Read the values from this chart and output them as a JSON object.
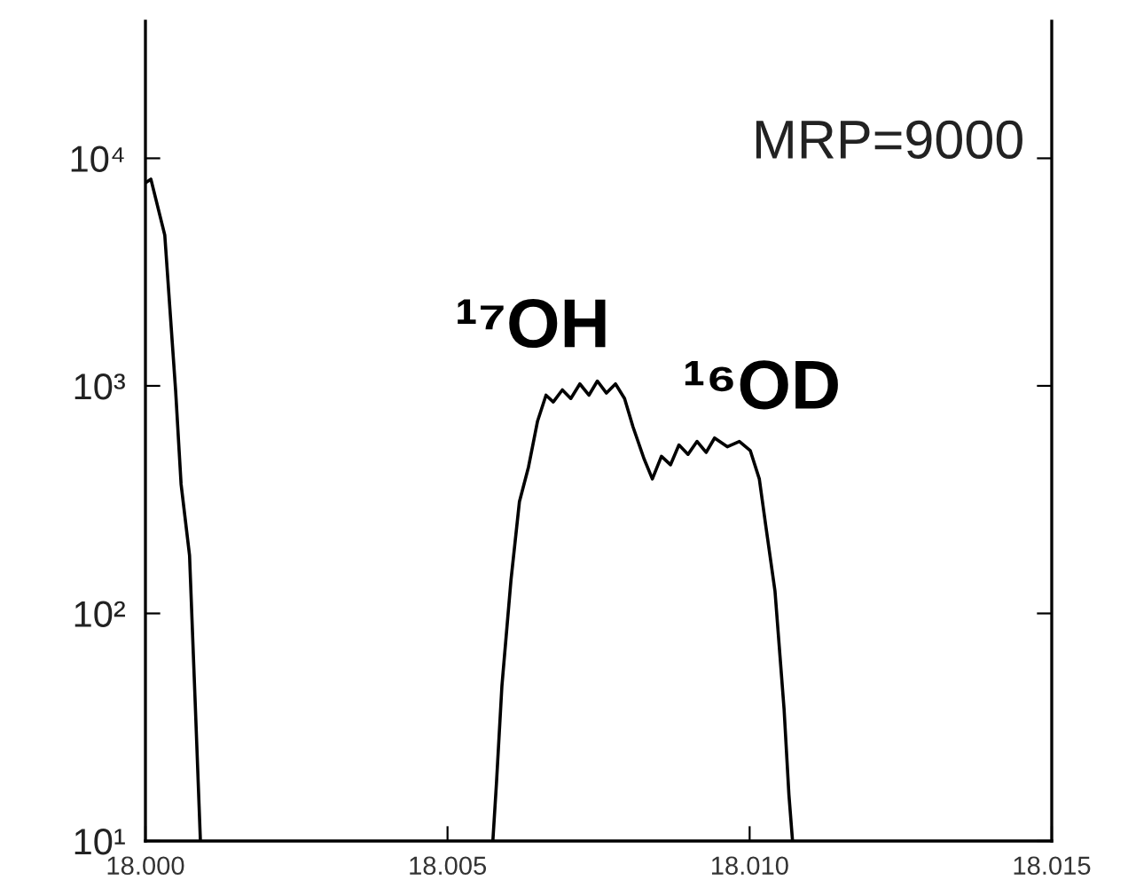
{
  "chart_data": {
    "type": "line",
    "log": "y",
    "grid": false,
    "marker": "none",
    "line_style": "solid",
    "xlim": [
      18.0,
      18.015
    ],
    "xticks": [
      {
        "value": 18.0,
        "label": "18.000"
      },
      {
        "value": 18.005,
        "label": "18.005"
      },
      {
        "value": 18.01,
        "label": "18.010"
      },
      {
        "value": 18.015,
        "label": "18.015"
      }
    ],
    "ylim": [
      10,
      40000
    ],
    "yticks": [
      {
        "value": 10,
        "label": "10¹"
      },
      {
        "value": 100,
        "label": "10²"
      },
      {
        "value": 1000,
        "label": "10³"
      },
      {
        "value": 10000,
        "label": "10⁴"
      }
    ],
    "x": [
      18.0,
      18.00009,
      18.00032,
      18.0005,
      18.00059,
      18.00073,
      18.00082,
      18.00091,
      18.003,
      18.00575,
      18.00581,
      18.0059,
      18.00605,
      18.00619,
      18.00634,
      18.00649,
      18.00663,
      18.00675,
      18.0069,
      18.00704,
      18.00719,
      18.00734,
      18.00748,
      18.00763,
      18.00778,
      18.00793,
      18.00807,
      18.00825,
      18.00839,
      18.00854,
      18.00869,
      18.00883,
      18.00898,
      18.00913,
      18.00928,
      18.00942,
      18.00963,
      18.00983,
      18.01001,
      18.01016,
      18.01027,
      18.01042,
      18.01057,
      18.01065,
      18.01071
    ],
    "series": [
      {
        "color": "#000000",
        "values": [
          7800,
          8100,
          4600,
          950,
          370,
          180,
          43,
          10,
          null,
          10,
          18,
          48,
          140,
          310,
          440,
          700,
          910,
          850,
          960,
          880,
          1020,
          910,
          1050,
          930,
          1020,
          880,
          660,
          480,
          390,
          490,
          450,
          550,
          500,
          570,
          510,
          590,
          540,
          570,
          520,
          390,
          240,
          125,
          38,
          16,
          10
        ]
      }
    ],
    "annotations": [
      "MRP=9000",
      "¹⁷OH",
      "¹⁶OD"
    ]
  }
}
